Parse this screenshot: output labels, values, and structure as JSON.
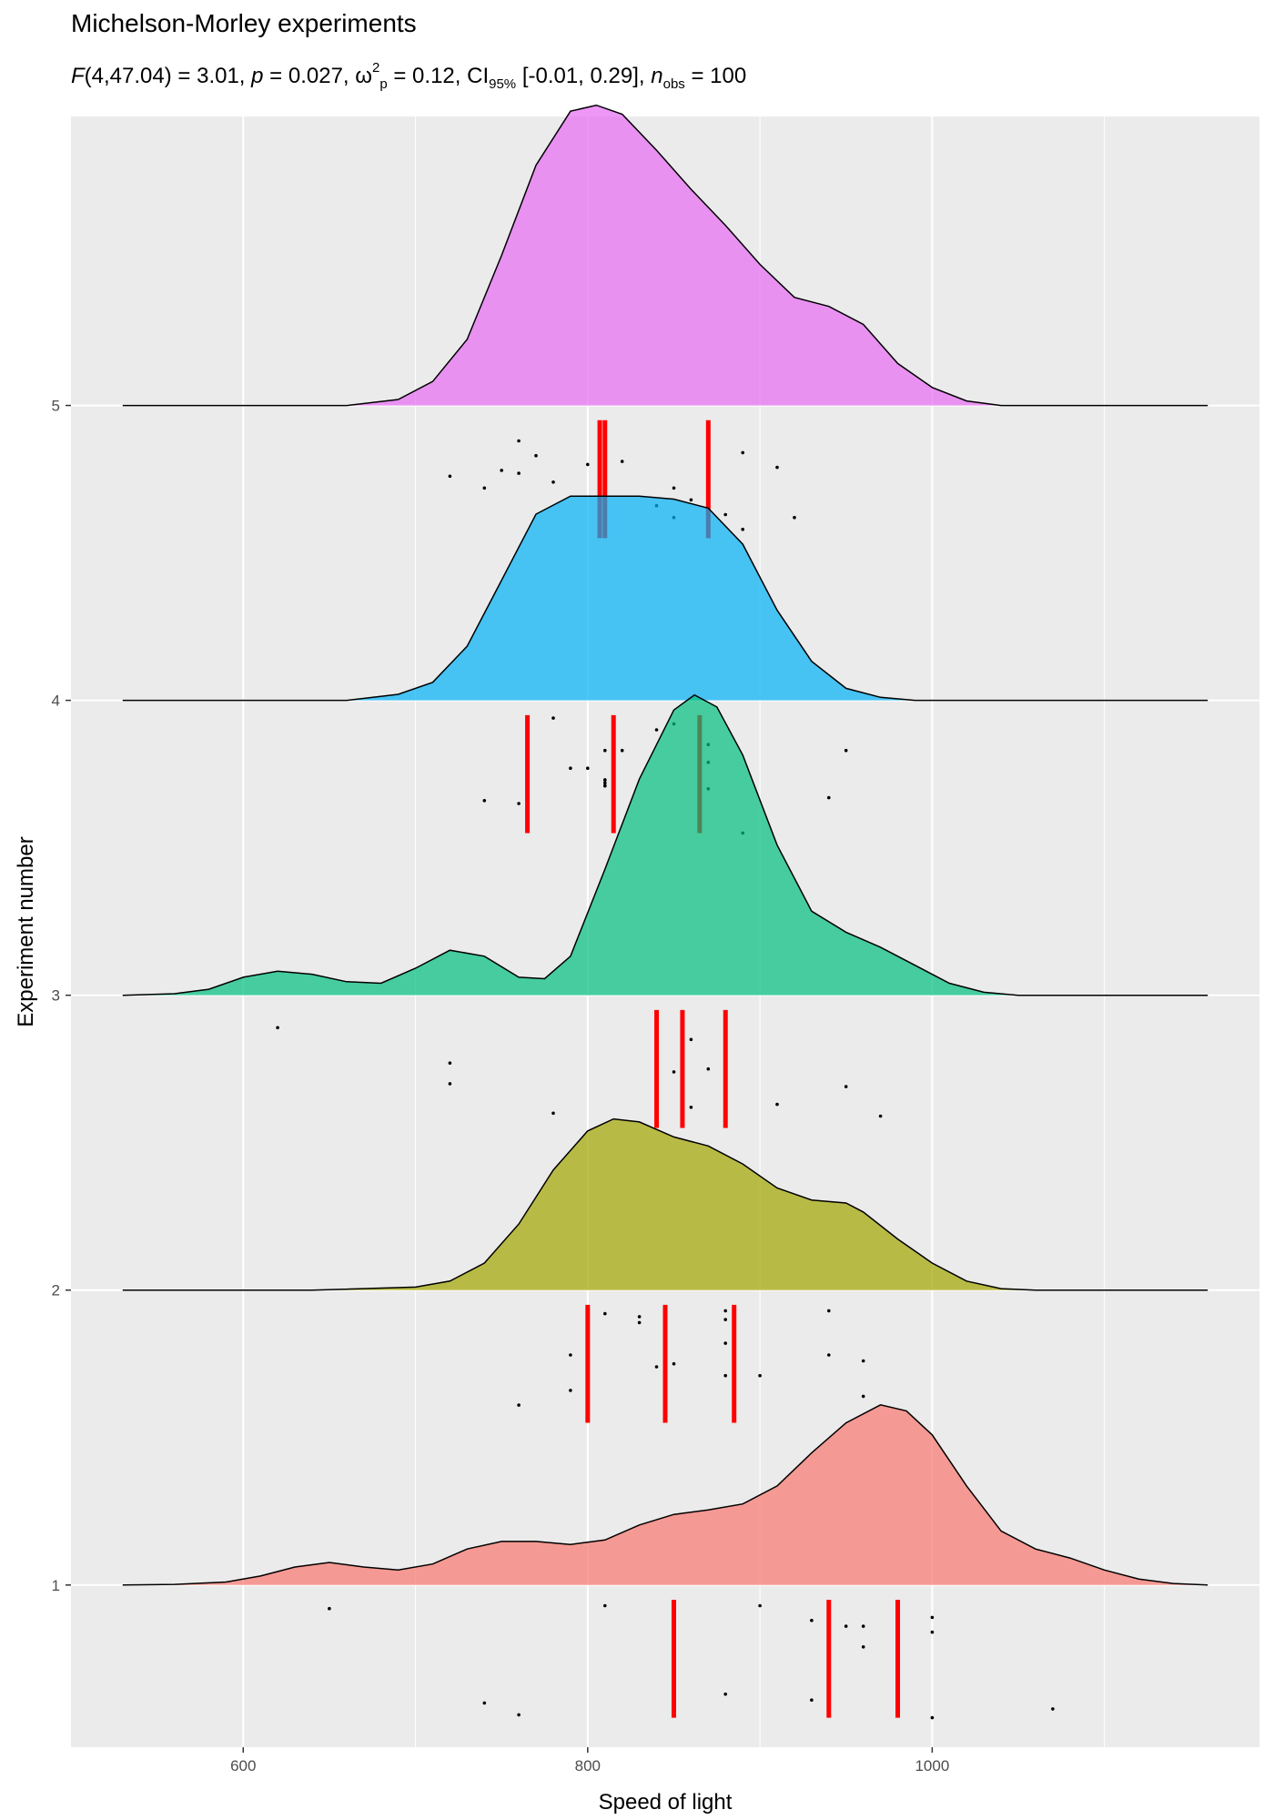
{
  "chart_data": {
    "type": "ridgeline-density-with-jittered-points-and-quantile-lines",
    "title": "Michelson-Morley experiments",
    "subtitle": {
      "F": "F",
      "df": "(4,47.04)",
      "F_value": "= 3.01,",
      "p": "p",
      "p_value": "= 0.027,",
      "omega": "ω",
      "omega_sup": "2",
      "omega_sub": "p",
      "omega_value": "= 0.12,",
      "ci": "CI",
      "ci_sub": "95%",
      "ci_value": "[-0.01, 0.29],",
      "n": "n",
      "n_sub": "obs",
      "n_value": "= 100"
    },
    "xlabel": "Speed of light",
    "ylabel": "Experiment number",
    "xlim": [
      500,
      1190
    ],
    "ylim": [
      0.45,
      5.98
    ],
    "x_ticks": [
      600,
      800,
      1000
    ],
    "x_tick_labels": [
      "600",
      "800",
      "1000"
    ],
    "y_ticks": [
      1,
      2,
      3,
      4,
      5
    ],
    "y_tick_labels": [
      "1",
      "2",
      "3",
      "4",
      "5"
    ],
    "grid": true,
    "density_x_range": [
      530,
      1160
    ],
    "series": [
      {
        "experiment": 1,
        "color": "#F8766D",
        "density_curve": [
          [
            530,
            0
          ],
          [
            560,
            0.002
          ],
          [
            590,
            0.01
          ],
          [
            610,
            0.03
          ],
          [
            630,
            0.06
          ],
          [
            650,
            0.075
          ],
          [
            670,
            0.06
          ],
          [
            690,
            0.05
          ],
          [
            710,
            0.07
          ],
          [
            730,
            0.12
          ],
          [
            750,
            0.145
          ],
          [
            770,
            0.145
          ],
          [
            790,
            0.135
          ],
          [
            810,
            0.15
          ],
          [
            830,
            0.2
          ],
          [
            850,
            0.235
          ],
          [
            870,
            0.25
          ],
          [
            890,
            0.27
          ],
          [
            910,
            0.33
          ],
          [
            930,
            0.44
          ],
          [
            950,
            0.54
          ],
          [
            970,
            0.6
          ],
          [
            985,
            0.58
          ],
          [
            1000,
            0.5
          ],
          [
            1020,
            0.33
          ],
          [
            1040,
            0.18
          ],
          [
            1060,
            0.12
          ],
          [
            1080,
            0.09
          ],
          [
            1100,
            0.05
          ],
          [
            1120,
            0.02
          ],
          [
            1140,
            0.005
          ],
          [
            1160,
            0
          ]
        ],
        "points": [
          [
            850,
            0.62
          ],
          [
            740,
            0.6
          ],
          [
            900,
            0.93
          ],
          [
            1070,
            0.58
          ],
          [
            930,
            0.61
          ],
          [
            850,
            0.57
          ],
          [
            950,
            0.86
          ],
          [
            980,
            0.63
          ],
          [
            980,
            0.67
          ],
          [
            880,
            0.63
          ],
          [
            1000,
            0.89
          ],
          [
            980,
            0.62
          ],
          [
            930,
            0.88
          ],
          [
            650,
            0.92
          ],
          [
            760,
            0.56
          ],
          [
            810,
            0.93
          ],
          [
            1000,
            0.84
          ],
          [
            1000,
            0.55
          ],
          [
            960,
            0.86
          ],
          [
            960,
            0.79
          ]
        ],
        "quantiles": [
          850,
          940,
          980
        ]
      },
      {
        "experiment": 2,
        "color": "#A3A500",
        "density_curve": [
          [
            530,
            0
          ],
          [
            640,
            0.0
          ],
          [
            700,
            0.01
          ],
          [
            720,
            0.03
          ],
          [
            740,
            0.09
          ],
          [
            760,
            0.22
          ],
          [
            780,
            0.4
          ],
          [
            800,
            0.53
          ],
          [
            815,
            0.57
          ],
          [
            830,
            0.56
          ],
          [
            850,
            0.51
          ],
          [
            870,
            0.48
          ],
          [
            890,
            0.42
          ],
          [
            910,
            0.34
          ],
          [
            930,
            0.3
          ],
          [
            950,
            0.29
          ],
          [
            960,
            0.26
          ],
          [
            980,
            0.17
          ],
          [
            1000,
            0.09
          ],
          [
            1020,
            0.03
          ],
          [
            1040,
            0.005
          ],
          [
            1060,
            0
          ],
          [
            1160,
            0
          ]
        ],
        "points": [
          [
            960,
            1.64
          ],
          [
            940,
            1.93
          ],
          [
            960,
            1.76
          ],
          [
            940,
            1.78
          ],
          [
            880,
            1.9
          ],
          [
            800,
            1.83
          ],
          [
            850,
            1.75
          ],
          [
            880,
            1.82
          ],
          [
            900,
            1.71
          ],
          [
            840,
            1.74
          ],
          [
            830,
            1.89
          ],
          [
            790,
            1.78
          ],
          [
            810,
            1.92
          ],
          [
            880,
            1.93
          ],
          [
            880,
            1.71
          ],
          [
            830,
            1.91
          ],
          [
            800,
            1.85
          ],
          [
            790,
            1.66
          ],
          [
            760,
            1.61
          ],
          [
            800,
            1.84
          ]
        ],
        "quantiles": [
          800,
          845,
          885
        ]
      },
      {
        "experiment": 3,
        "color": "#00BF7D",
        "density_curve": [
          [
            530,
            0
          ],
          [
            560,
            0.005
          ],
          [
            580,
            0.02
          ],
          [
            600,
            0.06
          ],
          [
            620,
            0.08
          ],
          [
            640,
            0.07
          ],
          [
            660,
            0.045
          ],
          [
            680,
            0.04
          ],
          [
            700,
            0.09
          ],
          [
            720,
            0.15
          ],
          [
            740,
            0.13
          ],
          [
            760,
            0.06
          ],
          [
            775,
            0.055
          ],
          [
            790,
            0.13
          ],
          [
            810,
            0.42
          ],
          [
            830,
            0.72
          ],
          [
            850,
            0.95
          ],
          [
            862,
            1.0
          ],
          [
            875,
            0.96
          ],
          [
            890,
            0.8
          ],
          [
            910,
            0.5
          ],
          [
            930,
            0.28
          ],
          [
            950,
            0.21
          ],
          [
            970,
            0.16
          ],
          [
            990,
            0.1
          ],
          [
            1010,
            0.04
          ],
          [
            1030,
            0.01
          ],
          [
            1050,
            0
          ],
          [
            1160,
            0
          ]
        ],
        "points": [
          [
            880,
            2.58
          ],
          [
            880,
            2.72
          ],
          [
            880,
            2.68
          ],
          [
            910,
            2.63
          ],
          [
            880,
            2.75
          ],
          [
            850,
            2.74
          ],
          [
            840,
            2.75
          ],
          [
            780,
            2.6
          ],
          [
            840,
            2.71
          ],
          [
            870,
            2.75
          ],
          [
            840,
            2.66
          ],
          [
            880,
            2.61
          ],
          [
            860,
            2.62
          ],
          [
            720,
            2.7
          ],
          [
            720,
            2.77
          ],
          [
            620,
            2.89
          ],
          [
            860,
            2.85
          ],
          [
            970,
            2.59
          ],
          [
            950,
            2.69
          ],
          [
            840,
            2.78
          ]
        ],
        "quantiles": [
          840,
          855,
          880
        ]
      },
      {
        "experiment": 4,
        "color": "#00B0F6",
        "density_curve": [
          [
            530,
            0
          ],
          [
            660,
            0.0
          ],
          [
            690,
            0.02
          ],
          [
            710,
            0.06
          ],
          [
            730,
            0.18
          ],
          [
            750,
            0.4
          ],
          [
            770,
            0.62
          ],
          [
            790,
            0.68
          ],
          [
            810,
            0.68
          ],
          [
            830,
            0.68
          ],
          [
            850,
            0.67
          ],
          [
            870,
            0.64
          ],
          [
            890,
            0.52
          ],
          [
            910,
            0.3
          ],
          [
            930,
            0.13
          ],
          [
            950,
            0.04
          ],
          [
            970,
            0.01
          ],
          [
            990,
            0
          ],
          [
            1160,
            0
          ]
        ],
        "points": [
          [
            890,
            3.55
          ],
          [
            840,
            3.9
          ],
          [
            780,
            3.94
          ],
          [
            810,
            3.73
          ],
          [
            760,
            3.65
          ],
          [
            810,
            3.71
          ],
          [
            790,
            3.77
          ],
          [
            810,
            3.83
          ],
          [
            820,
            3.83
          ],
          [
            850,
            3.92
          ],
          [
            870,
            3.85
          ],
          [
            870,
            3.79
          ],
          [
            810,
            3.72
          ],
          [
            740,
            3.66
          ],
          [
            810,
            3.73
          ],
          [
            940,
            3.67
          ],
          [
            950,
            3.83
          ],
          [
            800,
            3.77
          ],
          [
            810,
            3.71
          ],
          [
            870,
            3.7
          ]
        ],
        "quantiles": [
          765,
          815,
          865
        ]
      },
      {
        "experiment": 5,
        "color": "#E76BF3",
        "density_curve": [
          [
            530,
            0
          ],
          [
            660,
            0.0
          ],
          [
            690,
            0.02
          ],
          [
            710,
            0.08
          ],
          [
            730,
            0.22
          ],
          [
            750,
            0.5
          ],
          [
            770,
            0.8
          ],
          [
            790,
            0.98
          ],
          [
            805,
            1.0
          ],
          [
            820,
            0.97
          ],
          [
            840,
            0.85
          ],
          [
            860,
            0.72
          ],
          [
            880,
            0.6
          ],
          [
            900,
            0.47
          ],
          [
            920,
            0.36
          ],
          [
            940,
            0.33
          ],
          [
            960,
            0.27
          ],
          [
            980,
            0.14
          ],
          [
            1000,
            0.06
          ],
          [
            1020,
            0.015
          ],
          [
            1040,
            0
          ],
          [
            1160,
            0
          ]
        ],
        "points": [
          [
            890,
            4.58
          ],
          [
            810,
            4.72
          ],
          [
            810,
            4.93
          ],
          [
            820,
            4.81
          ],
          [
            800,
            4.8
          ],
          [
            770,
            4.83
          ],
          [
            760,
            4.77
          ],
          [
            740,
            4.72
          ],
          [
            750,
            4.78
          ],
          [
            760,
            4.88
          ],
          [
            910,
            4.79
          ],
          [
            920,
            4.62
          ],
          [
            890,
            4.84
          ],
          [
            860,
            4.68
          ],
          [
            880,
            4.63
          ],
          [
            720,
            4.76
          ],
          [
            840,
            4.66
          ],
          [
            850,
            4.62
          ],
          [
            850,
            4.72
          ],
          [
            780,
            4.74
          ]
        ],
        "quantiles": [
          807,
          810,
          870
        ]
      }
    ]
  }
}
